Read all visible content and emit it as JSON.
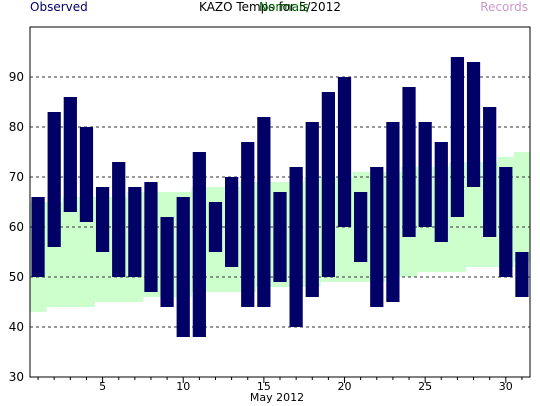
{
  "header": {
    "title": "KAZO Temps for 5/2012",
    "legend_observed": "Observed",
    "legend_normals": "Normals",
    "legend_records": "Records"
  },
  "colors": {
    "observed": "#000066",
    "normals": "#ccffcc",
    "normals_text": "#006600",
    "records_text": "#cc99cc",
    "title_text": "#000000"
  },
  "chart_data": {
    "type": "bar",
    "title": "KAZO Temps for 5/2012",
    "xlabel": "May 2012",
    "ylabel": "",
    "xlim": [
      0.5,
      31.5
    ],
    "ylim": [
      30,
      100
    ],
    "yticks": [
      30,
      40,
      50,
      60,
      70,
      80,
      90
    ],
    "xticks": [
      5,
      10,
      15,
      20,
      25,
      30
    ],
    "grid": true,
    "legend": "top",
    "days": [
      1,
      2,
      3,
      4,
      5,
      6,
      7,
      8,
      9,
      10,
      11,
      12,
      13,
      14,
      15,
      16,
      17,
      18,
      19,
      20,
      21,
      22,
      23,
      24,
      25,
      26,
      27,
      28,
      29,
      30,
      31
    ],
    "series": [
      {
        "name": "Observed",
        "low": [
          50,
          56,
          63,
          61,
          55,
          50,
          50,
          47,
          44,
          38,
          38,
          55,
          52,
          44,
          44,
          49,
          40,
          46,
          50,
          60,
          53,
          44,
          45,
          58,
          60,
          57,
          62,
          68,
          58,
          50,
          46
        ],
        "high": [
          66,
          83,
          86,
          80,
          68,
          73,
          68,
          69,
          62,
          66,
          75,
          65,
          70,
          77,
          82,
          67,
          72,
          81,
          87,
          90,
          67,
          72,
          81,
          88,
          81,
          77,
          94,
          93,
          84,
          72,
          55
        ]
      },
      {
        "name": "Normals",
        "low": [
          43,
          44,
          44,
          44,
          45,
          45,
          45,
          46,
          46,
          46,
          47,
          47,
          47,
          47,
          48,
          48,
          48,
          48,
          49,
          49,
          49,
          49,
          50,
          50,
          51,
          51,
          51,
          52,
          52,
          52,
          53
        ],
        "high": [
          65,
          65,
          66,
          66,
          66,
          66,
          67,
          67,
          67,
          67,
          68,
          68,
          68,
          69,
          69,
          69,
          69,
          70,
          70,
          70,
          71,
          71,
          71,
          72,
          72,
          72,
          73,
          73,
          73,
          74,
          75
        ]
      }
    ]
  }
}
